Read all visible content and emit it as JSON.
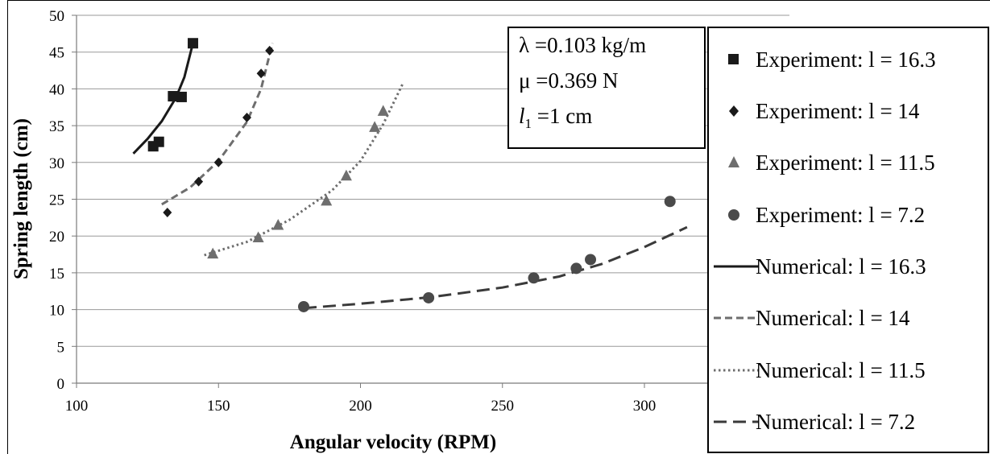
{
  "chart_data": {
    "type": "scatter",
    "title": "",
    "xlabel": "Angular velocity (RPM)",
    "ylabel": "Spring length (cm)",
    "xlim": [
      100,
      320
    ],
    "ylim": [
      0,
      50
    ],
    "x_ticks": [
      "100",
      "150",
      "200",
      "250",
      "300"
    ],
    "y_ticks": [
      "0",
      "5",
      "10",
      "15",
      "20",
      "25",
      "30",
      "35",
      "40",
      "45",
      "50"
    ],
    "grid": "horizontal",
    "legend_position": "right",
    "annotation": {
      "lambda": "λ =0.103 kg/m",
      "mu": "μ =0.369 N",
      "l1_sym": "l",
      "l1_sub": "1",
      "l1_rest": " =1 cm"
    },
    "series": [
      {
        "name": "Experiment: l = 16.3",
        "kind": "marker",
        "marker": "square",
        "points": [
          [
            127,
            32.2
          ],
          [
            129,
            32.8
          ],
          [
            134,
            39.0
          ],
          [
            137,
            38.9
          ],
          [
            141,
            46.2
          ]
        ]
      },
      {
        "name": "Experiment: l = 14",
        "kind": "marker",
        "marker": "diamond",
        "points": [
          [
            132,
            23.2
          ],
          [
            143,
            27.4
          ],
          [
            150,
            30.0
          ],
          [
            160,
            36.1
          ],
          [
            165,
            42.1
          ],
          [
            168,
            45.2
          ]
        ]
      },
      {
        "name": "Experiment: l = 11.5",
        "kind": "marker",
        "marker": "triangle",
        "points": [
          [
            148,
            17.6
          ],
          [
            164,
            19.8
          ],
          [
            171,
            21.5
          ],
          [
            188,
            24.8
          ],
          [
            195,
            28.2
          ],
          [
            205,
            34.8
          ],
          [
            208,
            37.0
          ]
        ]
      },
      {
        "name": "Experiment: l = 7.2",
        "kind": "marker",
        "marker": "circle",
        "points": [
          [
            180,
            10.4
          ],
          [
            224,
            11.6
          ],
          [
            261,
            14.3
          ],
          [
            276,
            15.6
          ],
          [
            281,
            16.8
          ],
          [
            309,
            24.7
          ]
        ]
      },
      {
        "name": "Numerical: l = 16.3",
        "kind": "line",
        "dash": "solid",
        "points": [
          [
            120,
            31.2
          ],
          [
            125,
            33.2
          ],
          [
            130,
            35.6
          ],
          [
            135,
            38.8
          ],
          [
            138,
            41.6
          ],
          [
            141,
            46.2
          ]
        ]
      },
      {
        "name": "Numerical: l = 14",
        "kind": "line",
        "dash": "dash",
        "points": [
          [
            130,
            24.3
          ],
          [
            140,
            26.6
          ],
          [
            150,
            30.2
          ],
          [
            160,
            35.5
          ],
          [
            165,
            40.0
          ],
          [
            169,
            46.2
          ]
        ]
      },
      {
        "name": "Numerical: l = 11.5",
        "kind": "line",
        "dash": "dot",
        "points": [
          [
            145,
            17.4
          ],
          [
            160,
            19.2
          ],
          [
            175,
            22.2
          ],
          [
            190,
            26.2
          ],
          [
            200,
            30.2
          ],
          [
            208,
            35.2
          ],
          [
            215,
            40.8
          ]
        ]
      },
      {
        "name": "Numerical: l = 7.2",
        "kind": "line",
        "dash": "longdash",
        "points": [
          [
            180,
            10.2
          ],
          [
            200,
            10.8
          ],
          [
            225,
            11.7
          ],
          [
            250,
            13.0
          ],
          [
            270,
            14.5
          ],
          [
            285,
            16.2
          ],
          [
            300,
            18.5
          ],
          [
            315,
            21.2
          ]
        ]
      }
    ]
  }
}
